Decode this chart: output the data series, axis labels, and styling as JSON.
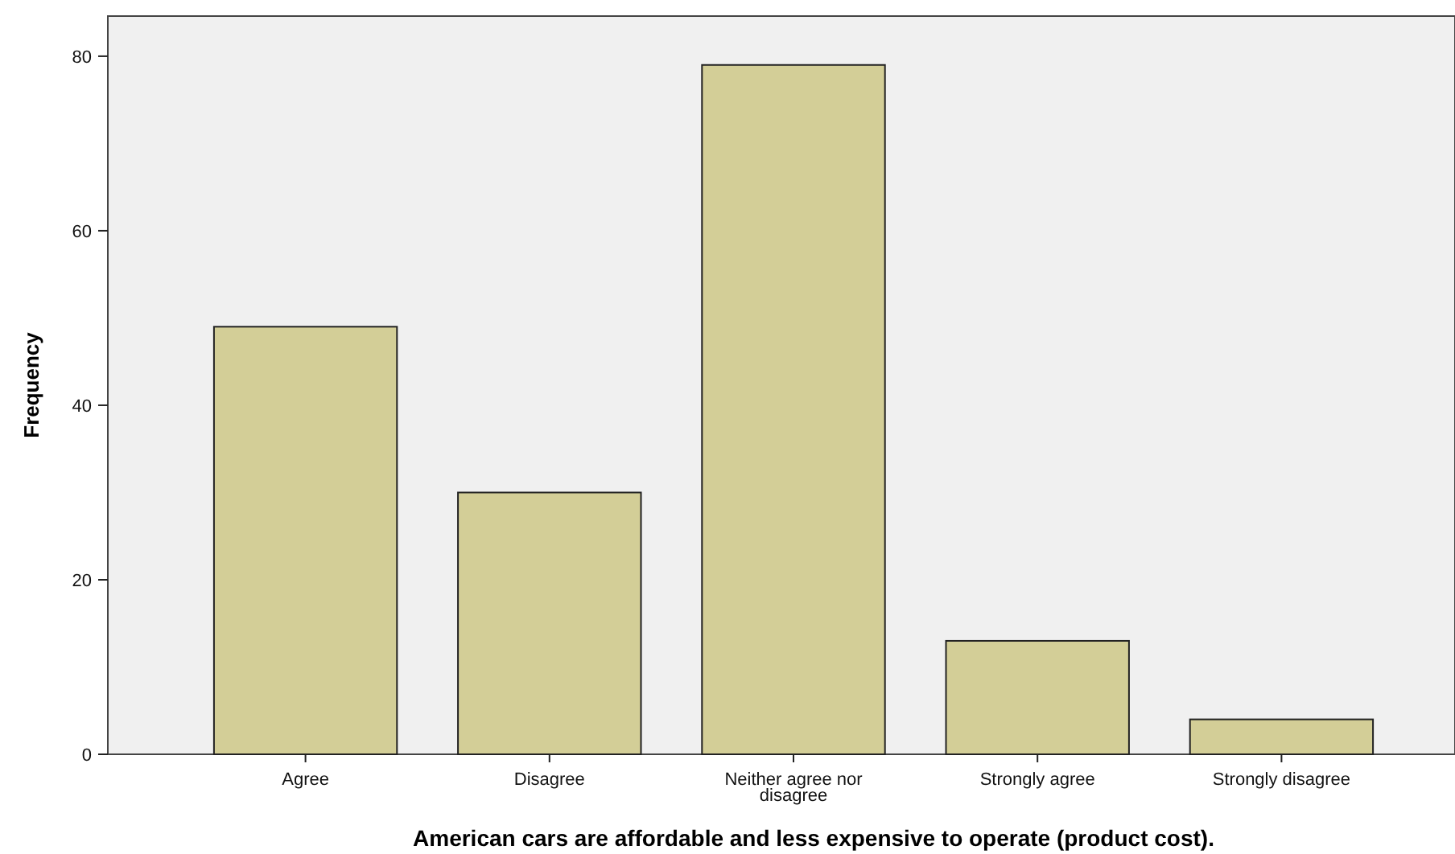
{
  "chart_data": {
    "type": "bar",
    "xlabel": "American cars are affordable and less expensive to operate (product cost).",
    "ylabel": "Frequency",
    "categories": [
      "Agree",
      "Disagree",
      "Neither agree nor disagree",
      "Strongly agree",
      "Strongly disagree"
    ],
    "values": [
      49,
      30,
      79,
      13,
      4
    ],
    "color": "#d3ce97",
    "ylim": [
      0,
      84.6
    ],
    "yticks": [
      0,
      20,
      40,
      60,
      80
    ],
    "grid": false
  }
}
